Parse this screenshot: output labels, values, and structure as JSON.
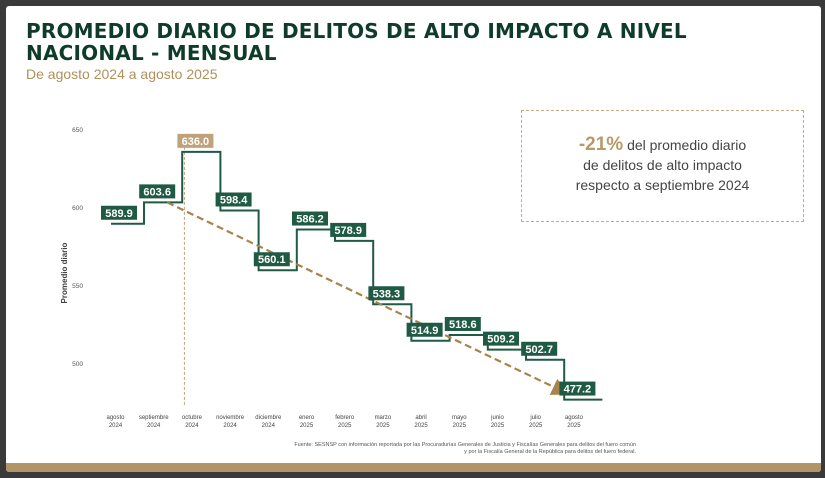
{
  "title": "PROMEDIO DIARIO DE DELITOS DE ALTO IMPACTO A NIVEL NACIONAL - MENSUAL",
  "subtitle": "De agosto 2024 a agosto 2025",
  "callout": {
    "pct": "-21%",
    "line1_rest": " del promedio diario",
    "line2": "de delitos de alto impacto",
    "line3": "respecto a septiembre 2024"
  },
  "source": {
    "line1": "Fuente: SESNSP con información reportada por las Procuradurías Generales de Justicia y Fiscalías Generales para delitos del fuero común",
    "line2": "y por la Fiscalía General de la República para delitos del fuero federal."
  },
  "colors": {
    "step": "#1f5a45",
    "label_bg": "#1f5a45",
    "highlight_bg": "#bfa27a",
    "trend": "#a8844c",
    "accent": "#b29467"
  },
  "chart_data": {
    "type": "line",
    "subtype": "step",
    "title": "",
    "xlabel": "",
    "ylabel": "Promedio diario",
    "ylim": [
      470,
      655
    ],
    "yticks": [
      "650",
      "600",
      "550",
      "500"
    ],
    "ytick_values": [
      650,
      600,
      550,
      500
    ],
    "categories": [
      [
        "agosto",
        "2024"
      ],
      [
        "septiembre",
        "2024"
      ],
      [
        "octubre",
        "2024"
      ],
      [
        "noviembre",
        "2024"
      ],
      [
        "diciembre",
        "2024"
      ],
      [
        "enero",
        "2025"
      ],
      [
        "febrero",
        "2025"
      ],
      [
        "marzo",
        "2025"
      ],
      [
        "abril",
        "2025"
      ],
      [
        "mayo",
        "2025"
      ],
      [
        "junio",
        "2025"
      ],
      [
        "julio",
        "2025"
      ],
      [
        "agosto",
        "2025"
      ]
    ],
    "values": [
      589.9,
      603.6,
      636.0,
      598.4,
      560.1,
      586.2,
      578.9,
      538.3,
      514.9,
      518.6,
      509.2,
      502.7,
      477.2
    ],
    "labels": [
      "589.9",
      "603.6",
      "636.0",
      "598.4",
      "560.1",
      "586.2",
      "578.9",
      "538.3",
      "514.9",
      "518.6",
      "509.2",
      "502.7",
      "477.2"
    ],
    "highlight_index": 2,
    "trend_from_index": 1,
    "trend_to_index": 12,
    "grid": false,
    "legend": "none"
  }
}
